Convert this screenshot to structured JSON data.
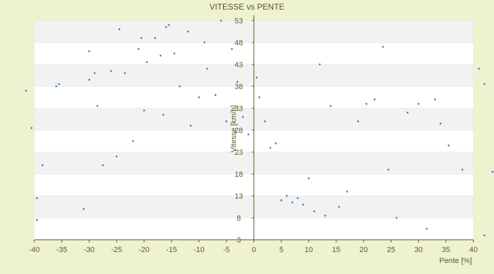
{
  "chart_data": {
    "type": "scatter",
    "title": "VITESSE vs PENTE",
    "xlabel": "Pente [%]",
    "ylabel": "Vitesse [km/h]",
    "xlim": [
      -40,
      40
    ],
    "ylim": [
      3,
      53
    ],
    "x_ticks": [
      "-40",
      "-35",
      "-30",
      "-25",
      "-20",
      "-15",
      "-10",
      "-5",
      "0",
      "5",
      "10",
      "15",
      "20",
      "25",
      "30",
      "35",
      "40"
    ],
    "y_ticks": [
      "3",
      "8",
      "13",
      "18",
      "23",
      "28",
      "33",
      "38",
      "43",
      "48",
      "53"
    ],
    "grid": "horizontal alternating bands",
    "legend": "none",
    "colors": {
      "background": "#eef2cf",
      "plot_band_light": "#ffffff",
      "plot_band_dark": "#f2f2f2",
      "marker": "#2e7fd6",
      "axis": "#55551f"
    },
    "series": [
      {
        "values_sample": [
          [
            -40.5,
            28.5
          ],
          [
            -41.5,
            37.0
          ],
          [
            -38.5,
            20.0
          ],
          [
            -39.5,
            12.5
          ],
          [
            -39.5,
            7.5
          ],
          [
            -36.0,
            38.0
          ],
          [
            -35.5,
            38.5
          ],
          [
            -31.0,
            10.0
          ],
          [
            -30.0,
            46.0
          ],
          [
            -30.0,
            39.5
          ],
          [
            -29.0,
            41.0
          ],
          [
            -28.5,
            33.5
          ],
          [
            -27.5,
            20.0
          ],
          [
            -26.0,
            41.5
          ],
          [
            -25.0,
            22.0
          ],
          [
            -24.5,
            51.0
          ],
          [
            -23.5,
            41.0
          ],
          [
            -22.0,
            25.5
          ],
          [
            -21.0,
            46.5
          ],
          [
            -20.5,
            49.0
          ],
          [
            -20.0,
            32.5
          ],
          [
            -19.5,
            43.5
          ],
          [
            -18.0,
            49.0
          ],
          [
            -17.0,
            45.0
          ],
          [
            -16.5,
            31.5
          ],
          [
            -16.0,
            51.5
          ],
          [
            -15.5,
            52.0
          ],
          [
            -14.5,
            45.5
          ],
          [
            -13.5,
            38.0
          ],
          [
            -12.0,
            50.5
          ],
          [
            -11.5,
            29.0
          ],
          [
            -10.0,
            35.5
          ],
          [
            -9.0,
            48.0
          ],
          [
            -8.5,
            42.0
          ],
          [
            -7.0,
            36.0
          ],
          [
            -6.0,
            53.0
          ],
          [
            -5.0,
            30.0
          ],
          [
            -4.0,
            46.5
          ],
          [
            -3.0,
            39.0
          ],
          [
            -2.0,
            31.0
          ],
          [
            -1.0,
            27.0
          ],
          [
            0.5,
            40.0
          ],
          [
            1.0,
            35.5
          ],
          [
            2.0,
            30.0
          ],
          [
            3.0,
            24.0
          ],
          [
            4.0,
            25.0
          ],
          [
            5.0,
            12.0
          ],
          [
            6.0,
            13.0
          ],
          [
            7.0,
            11.5
          ],
          [
            8.0,
            12.5
          ],
          [
            9.0,
            11.0
          ],
          [
            10.0,
            17.0
          ],
          [
            11.0,
            9.5
          ],
          [
            12.0,
            43.0
          ],
          [
            13.0,
            8.5
          ],
          [
            14.0,
            33.5
          ],
          [
            15.5,
            10.5
          ],
          [
            17.0,
            14.0
          ],
          [
            19.0,
            30.0
          ],
          [
            20.5,
            34.0
          ],
          [
            22.0,
            35.0
          ],
          [
            23.5,
            47.0
          ],
          [
            24.5,
            19.0
          ],
          [
            26.0,
            8.0
          ],
          [
            28.0,
            32.0
          ],
          [
            30.0,
            34.0
          ],
          [
            31.5,
            5.5
          ],
          [
            33.0,
            35.0
          ],
          [
            34.0,
            29.5
          ],
          [
            35.5,
            24.5
          ],
          [
            38.0,
            19.0
          ],
          [
            41.0,
            42.0
          ],
          [
            42.0,
            38.5
          ],
          [
            43.5,
            18.5
          ],
          [
            42.0,
            4.0
          ]
        ]
      }
    ]
  }
}
